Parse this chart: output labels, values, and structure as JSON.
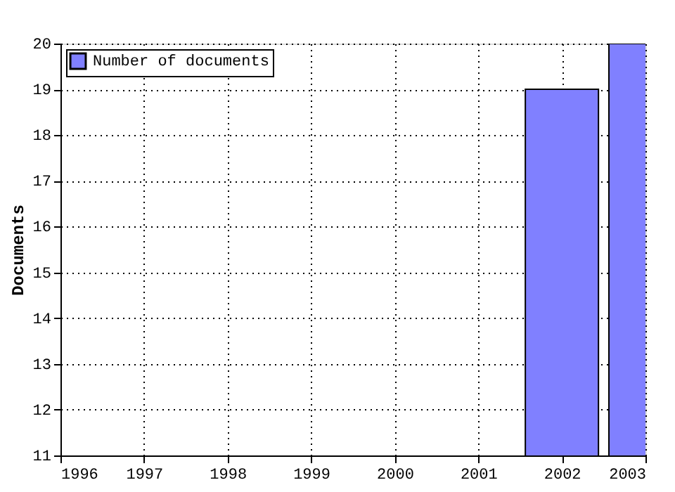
{
  "chart_data": {
    "type": "bar",
    "ylabel": "Documents",
    "x": [
      2002,
      2003
    ],
    "series": [
      {
        "name": "Number of documents",
        "color": "#8080ff",
        "values": [
          19,
          20
        ]
      }
    ],
    "xlim": [
      1996,
      2003
    ],
    "xticks": [
      1996,
      1997,
      1998,
      1999,
      2000,
      2001,
      2002,
      2003
    ],
    "ylim": [
      11,
      20
    ],
    "yticks": [
      11,
      12,
      13,
      14,
      15,
      16,
      17,
      18,
      19,
      20
    ],
    "grid": true,
    "legend": "top left"
  }
}
